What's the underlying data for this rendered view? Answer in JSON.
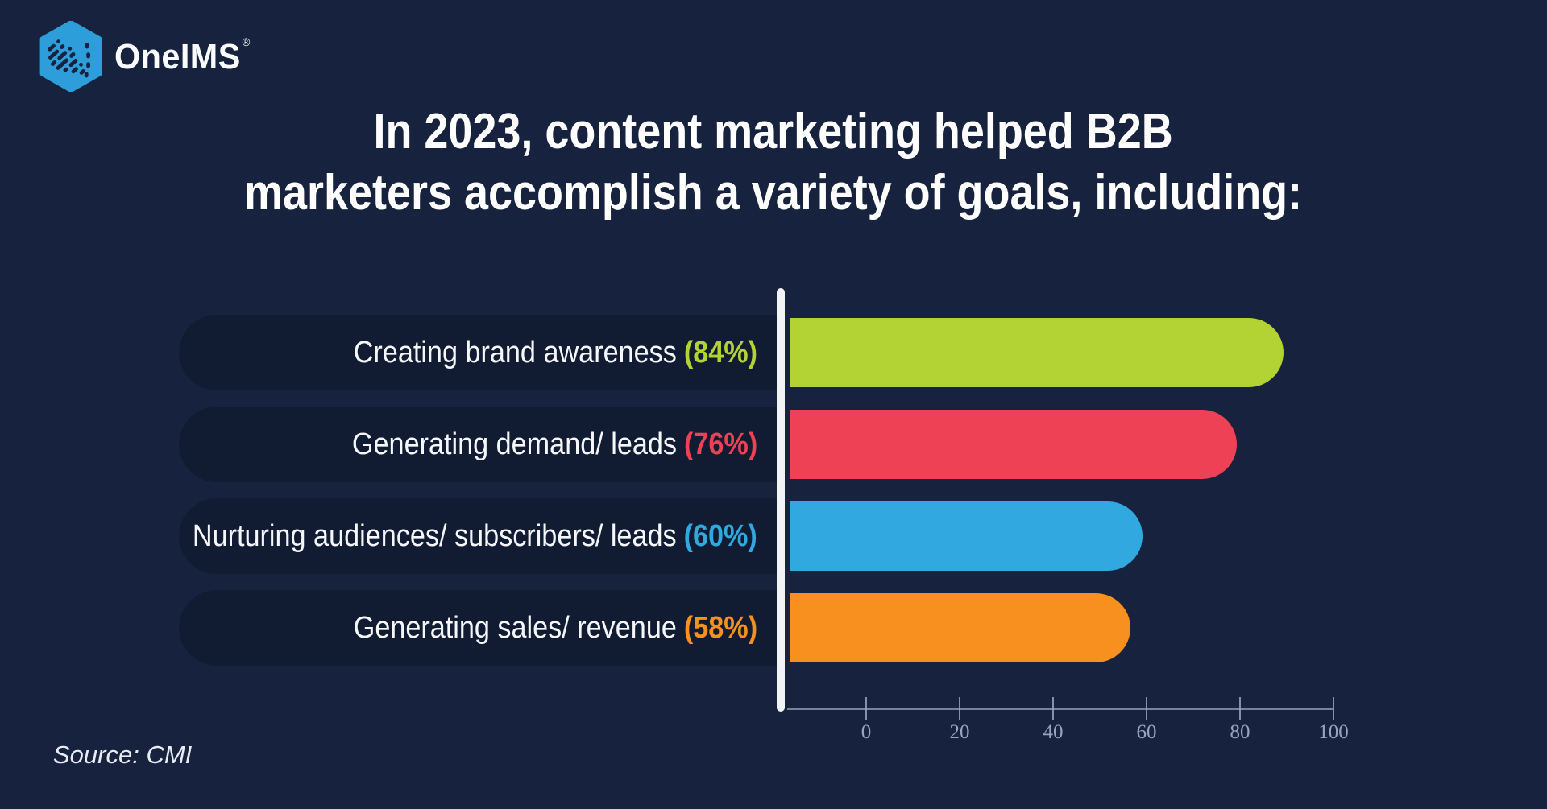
{
  "header": {
    "logo_text": "OneIMS",
    "registered_mark": "®"
  },
  "title": {
    "line1": "In 2023, content marketing helped B2B",
    "line2": "marketers accomplish a variety of goals, including:"
  },
  "source": {
    "label": "Source: CMI"
  },
  "chart_data": {
    "type": "bar",
    "orientation": "horizontal",
    "title": "In 2023, content marketing helped B2B marketers accomplish a variety of goals, including:",
    "categories": [
      "Creating brand awareness",
      "Generating demand/ leads",
      "Nurturing audiences/ subscribers/ leads",
      "Generating sales/ revenue"
    ],
    "values": [
      84,
      76,
      60,
      58
    ],
    "value_display": [
      "(84%)",
      "(76%)",
      "(60%)",
      "(58%)"
    ],
    "bar_colors": [
      "#B3D334",
      "#EF4155",
      "#31A8E0",
      "#F7901E"
    ],
    "axis_ticks": [
      0,
      20,
      40,
      60,
      80,
      100
    ],
    "xlim": [
      0,
      100
    ],
    "xlabel": "",
    "ylabel": "",
    "grid": false,
    "legend": false,
    "source": "CMI"
  },
  "colors": {
    "background": "#17233E",
    "pill": "#111C33",
    "baseline": "#F2F3F5",
    "axis": "#9AA4BC",
    "title_text": "#FFFFFF",
    "label_text": "#F6F7FA",
    "logo_blue": "#2E9EDB"
  }
}
